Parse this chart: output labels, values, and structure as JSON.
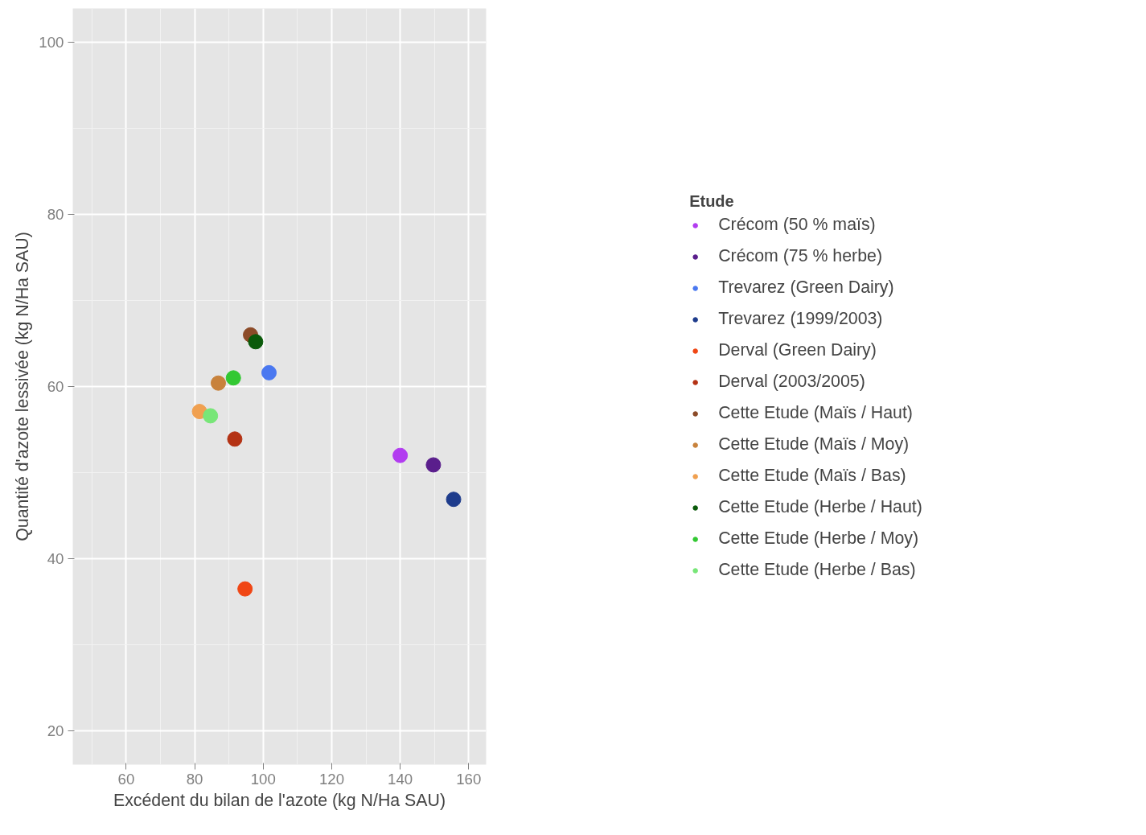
{
  "chart_data": {
    "type": "scatter",
    "xlabel": "Excédent du bilan de l'azote (kg N/Ha SAU)",
    "ylabel": "Quantité d'azote lessivée (kg N/Ha SAU)",
    "legend_title": "Etude",
    "xlim": [
      44.4,
      165.1
    ],
    "ylim": [
      16.1,
      103.9
    ],
    "xticks": [
      60,
      80,
      100,
      120,
      140,
      160
    ],
    "yticks": [
      20,
      40,
      60,
      80,
      100
    ],
    "grid": true,
    "legend": "right",
    "marker": "circle",
    "series": [
      {
        "name": "Crécom (50 % maïs)",
        "color": "#b23cf0",
        "x": [
          140
        ],
        "values": [
          52
        ]
      },
      {
        "name": "Crécom (75 % herbe)",
        "color": "#5a1e8c",
        "x": [
          149.7
        ],
        "values": [
          50.9
        ]
      },
      {
        "name": "Trevarez (Green Dairy)",
        "color": "#4a78f0",
        "x": [
          101.7
        ],
        "values": [
          61.6
        ]
      },
      {
        "name": "Trevarez (1999/2003)",
        "color": "#1e3c8c",
        "x": [
          155.6
        ],
        "values": [
          46.9
        ]
      },
      {
        "name": "Derval (Green Dairy)",
        "color": "#f04614",
        "x": [
          94.7
        ],
        "values": [
          36.5
        ]
      },
      {
        "name": "Derval (2003/2005)",
        "color": "#b43214",
        "x": [
          91.7
        ],
        "values": [
          53.9
        ]
      },
      {
        "name": "Cette Etude (Maïs / Haut)",
        "color": "#8c4b28",
        "x": [
          96.3
        ],
        "values": [
          66
        ]
      },
      {
        "name": "Cette Etude (Maïs / Moy)",
        "color": "#c8823c",
        "x": [
          86.9
        ],
        "values": [
          60.4
        ]
      },
      {
        "name": "Cette Etude (Maïs / Bas)",
        "color": "#f0a050",
        "x": [
          81.4
        ],
        "values": [
          57.1
        ]
      },
      {
        "name": "Cette Etude (Herbe / Haut)",
        "color": "#0a5a0a",
        "x": [
          97.8
        ],
        "values": [
          65.2
        ]
      },
      {
        "name": "Cette Etude (Herbe / Moy)",
        "color": "#32c832",
        "x": [
          91.3
        ],
        "values": [
          61
        ]
      },
      {
        "name": "Cette Etude (Herbe / Bas)",
        "color": "#78e678",
        "x": [
          84.6
        ],
        "values": [
          56.6
        ]
      }
    ]
  }
}
